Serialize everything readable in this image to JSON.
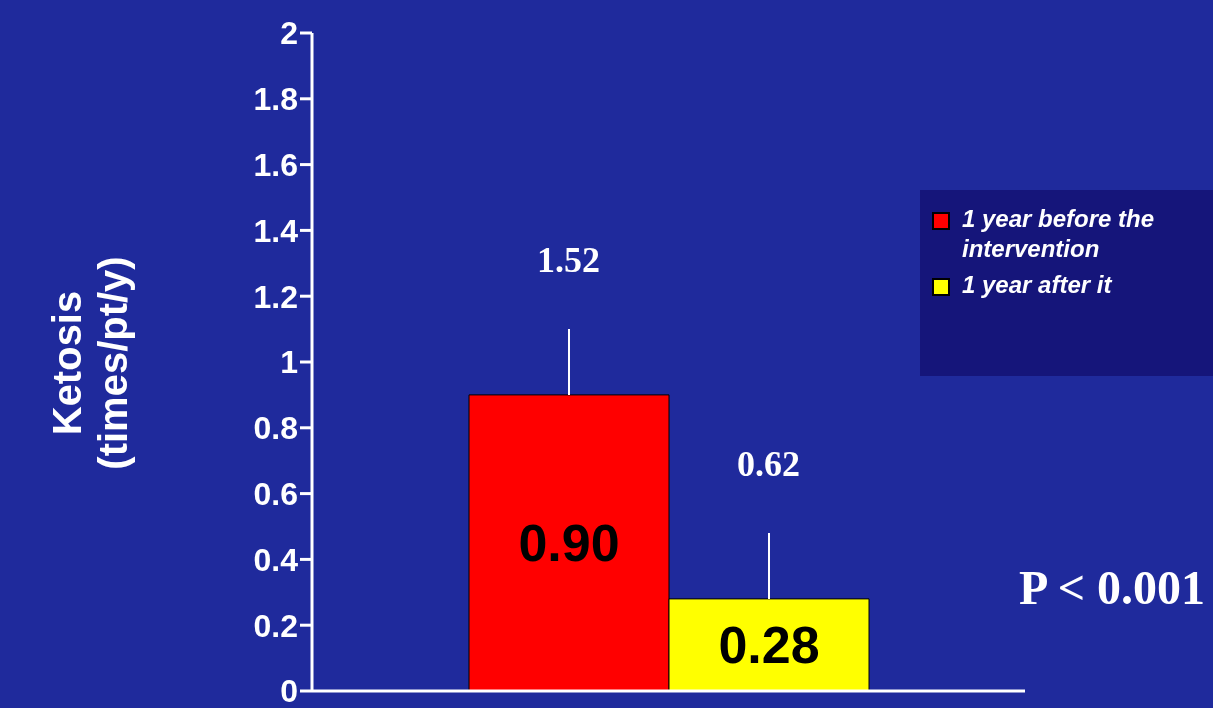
{
  "chart_data": {
    "type": "bar",
    "ylabel": "Ketosis\n(times/pt/y)",
    "categories": [
      null
    ],
    "series": [
      {
        "name": "1 year before the intervention",
        "color": "#ff0000",
        "values": [
          0.9
        ],
        "value_labels": [
          "0.90"
        ],
        "errors": [
          [
            0.9,
            1.1
          ]
        ]
      },
      {
        "name": "1 year after it",
        "color": "#ffff00",
        "values": [
          0.28
        ],
        "value_labels": [
          "0.28"
        ],
        "errors": [
          [
            0.28,
            0.48
          ]
        ]
      }
    ],
    "ylim": [
      0,
      2
    ],
    "yticks": [
      0,
      0.2,
      0.4,
      0.6,
      0.8,
      1,
      1.2,
      1.4,
      1.6,
      1.8,
      2
    ],
    "tick_labels": "y",
    "legend": "right",
    "annotations": [
      "1.52",
      "0.62",
      "P < 0.001"
    ]
  }
}
